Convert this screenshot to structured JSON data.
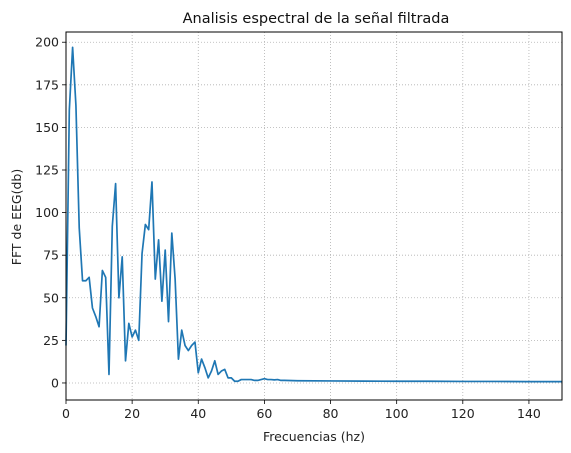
{
  "chart_data": {
    "type": "line",
    "title": "Analisis espectral de la señal filtrada",
    "xlabel": "Frecuencias (hz)",
    "ylabel": "FFT de EEG(db)",
    "xlim": [
      0,
      150
    ],
    "ylim": [
      -10,
      206
    ],
    "x_ticks": [
      0,
      20,
      40,
      60,
      80,
      100,
      120,
      140
    ],
    "y_ticks": [
      0,
      25,
      50,
      75,
      100,
      125,
      150,
      175,
      200
    ],
    "grid": true,
    "grid_style": "dotted",
    "line_color": "#1f77b4",
    "series": [
      {
        "x": [
          0,
          1,
          2,
          3,
          4,
          5,
          6,
          7,
          8,
          9,
          10,
          11,
          12,
          13,
          14,
          15,
          16,
          17,
          18,
          19,
          20,
          21,
          22,
          23,
          24,
          25,
          26,
          27,
          28,
          29,
          30,
          31,
          32,
          33,
          34,
          35,
          36,
          37,
          38,
          39,
          40,
          41,
          42,
          43,
          44,
          45,
          46,
          47,
          48,
          49,
          50,
          51,
          52,
          53,
          54,
          55,
          56,
          57,
          58,
          59,
          60,
          61,
          62,
          63,
          64,
          65,
          66,
          70,
          80,
          90,
          100,
          110,
          120,
          130,
          140,
          150
        ],
        "y": [
          22,
          160,
          197,
          163,
          91,
          60,
          60,
          62,
          44,
          39,
          33,
          66,
          62,
          5,
          92,
          117,
          50,
          74,
          13,
          35,
          27,
          31,
          25,
          76,
          93,
          90,
          118,
          61,
          84,
          48,
          78,
          36,
          88,
          61,
          14,
          31,
          22,
          19,
          22,
          24,
          6,
          14,
          9,
          3,
          7,
          13,
          5,
          7,
          8,
          3,
          3,
          1,
          1,
          2,
          2,
          2,
          2,
          1.5,
          1.5,
          2,
          2.5,
          2,
          2,
          1.8,
          2,
          1.5,
          1.5,
          1.3,
          1.2,
          1.1,
          1.0,
          1.0,
          0.9,
          0.9,
          0.8,
          0.8
        ]
      }
    ]
  }
}
